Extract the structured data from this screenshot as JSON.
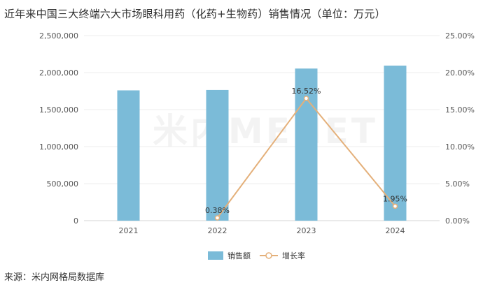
{
  "title": "近年来中国三大终端六大市场眼科用药（化药+生物药）销售情况（单位：万元）",
  "source": "来源：米内网格局数据库",
  "watermark": "米内MENET",
  "colors": {
    "bar": "#7bbbd8",
    "line": "#e4b07a",
    "grid": "#ececec"
  },
  "chart_data": {
    "type": "bar",
    "categories": [
      "2021",
      "2022",
      "2023",
      "2024"
    ],
    "series": [
      {
        "name": "销售额",
        "type": "bar",
        "axis": "left",
        "values": [
          1760000,
          1765000,
          2055000,
          2095000
        ]
      },
      {
        "name": "增长率",
        "type": "line",
        "axis": "right",
        "values": [
          null,
          0.38,
          16.52,
          1.95
        ],
        "labels": [
          "",
          "0.38%",
          "16.52%",
          "1.95%"
        ]
      }
    ],
    "y_left": {
      "min": 0,
      "max": 2500000,
      "ticks": [
        "0",
        "500,000",
        "1,000,000",
        "1,500,000",
        "2,000,000",
        "2,500,000"
      ]
    },
    "y_right": {
      "min": 0,
      "max": 25,
      "ticks": [
        "0.00%",
        "5.00%",
        "10.00%",
        "15.00%",
        "20.00%",
        "25.00%"
      ]
    },
    "grid": true,
    "legend_position": "bottom"
  }
}
